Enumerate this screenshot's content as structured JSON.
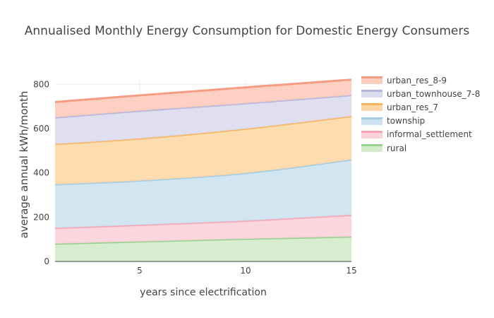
{
  "chart_data": {
    "type": "area",
    "stacked": true,
    "title": "Annualised Monthly Energy Consumption for Domestic Energy Consumers",
    "xlabel": "years since electrification",
    "ylabel": "average annual kWh/month",
    "xlim": [
      1,
      15
    ],
    "ylim": [
      0,
      820
    ],
    "xticks": [
      5,
      10,
      15
    ],
    "yticks": [
      0,
      200,
      400,
      600,
      800
    ],
    "grid": true,
    "legend_position": "top-right",
    "x": [
      1,
      5,
      10,
      15
    ],
    "series": [
      {
        "name": "rural",
        "color": "#98d08f",
        "fill": "#d1ebcb",
        "values": [
          80,
          90,
          102,
          112
        ]
      },
      {
        "name": "informal_settlement",
        "color": "#f6a3b4",
        "fill": "#fbd1da",
        "values": [
          71,
          75,
          82,
          98
        ]
      },
      {
        "name": "township",
        "color": "#a3cde3",
        "fill": "#cde3f0",
        "values": [
          197,
          200,
          215,
          250
        ]
      },
      {
        "name": "urban_res_7",
        "color": "#f8b35d",
        "fill": "#fdd8a6",
        "values": [
          182,
          190,
          200,
          196
        ]
      },
      {
        "name": "urban_townhouse_7-8",
        "color": "#b4b6dc",
        "fill": "#dcdcee",
        "values": [
          120,
          125,
          115,
          95
        ]
      },
      {
        "name": "urban_res_8-9",
        "color": "#f69c83",
        "fill": "#fcccbc",
        "values": [
          70,
          70,
          72,
          70
        ]
      }
    ]
  }
}
